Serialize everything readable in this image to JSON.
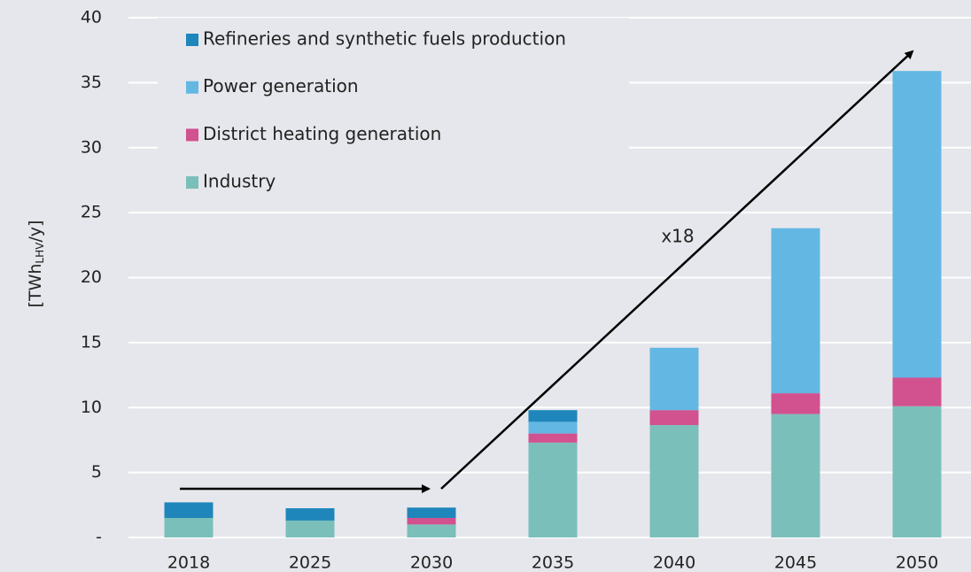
{
  "chart_data": {
    "type": "stacked-bar",
    "ylabel": [
      "[TWh",
      "LHV",
      "/y]"
    ],
    "categories": [
      "2018",
      "2025",
      "2030",
      "2035",
      "2040",
      "2045",
      "2050"
    ],
    "series": [
      {
        "name": "Industry",
        "color": "#7bbfba",
        "values": [
          1.5,
          1.3,
          1.0,
          7.3,
          8.65,
          9.5,
          10.1
        ]
      },
      {
        "name": "District heating generation",
        "color": "#d2518f",
        "values": [
          0,
          0,
          0.5,
          0.7,
          1.15,
          1.6,
          2.2
        ]
      },
      {
        "name": "Power generation",
        "color": "#63b7e3",
        "values": [
          0,
          0,
          0,
          0.9,
          4.8,
          12.7,
          23.6
        ]
      },
      {
        "name": "Refineries and synthetic fuels production",
        "color": "#1f86bb",
        "values": [
          1.2,
          0.95,
          0.8,
          0.9,
          0,
          0,
          0
        ]
      }
    ],
    "ylim": [
      0,
      40
    ],
    "yticks": [
      {
        "value": 0,
        "label": "-"
      },
      5,
      10,
      15,
      20,
      25,
      30,
      35,
      40
    ],
    "grid": true,
    "annotations": [
      {
        "text": "x18"
      }
    ]
  }
}
